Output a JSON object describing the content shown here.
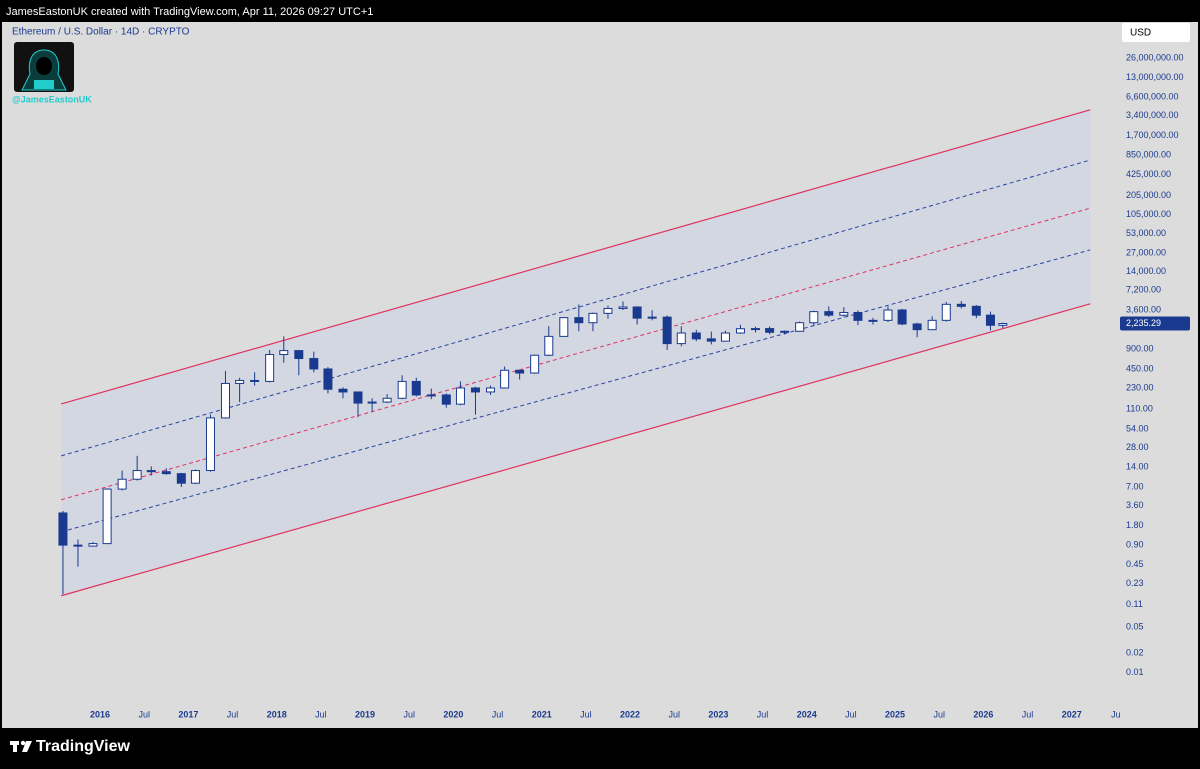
{
  "chart_data": {
    "type": "candlestick",
    "header": "JamesEastonUK created with TradingView.com, Apr 11, 2026 09:27 UTC+1",
    "title": "Ethereum / U.S. Dollar · 14D · CRYPTO",
    "handle": "@JamesEastonUK",
    "currency": "USD",
    "brand": "TradingView",
    "log_scale": true,
    "up_color": "#ffffff",
    "down_color": "#1a3a8f",
    "edge_color": "#1a3a8f",
    "x": [
      2015.58,
      2015.75,
      2015.92,
      2016.08,
      2016.25,
      2016.42,
      2016.58,
      2016.75,
      2016.92,
      2017.08,
      2017.25,
      2017.42,
      2017.58,
      2017.75,
      2017.92,
      2018.08,
      2018.25,
      2018.42,
      2018.58,
      2018.75,
      2018.92,
      2019.08,
      2019.25,
      2019.42,
      2019.58,
      2019.75,
      2019.92,
      2020.08,
      2020.25,
      2020.42,
      2020.58,
      2020.75,
      2020.92,
      2021.08,
      2021.25,
      2021.42,
      2021.58,
      2021.75,
      2021.92,
      2022.08,
      2022.25,
      2022.42,
      2022.58,
      2022.75,
      2022.92,
      2023.08,
      2023.25,
      2023.42,
      2023.58,
      2023.75,
      2023.92,
      2024.08,
      2024.25,
      2024.42,
      2024.58,
      2024.75,
      2024.92,
      2025.08,
      2025.25,
      2025.42,
      2025.58,
      2025.75,
      2025.92,
      2026.08,
      2026.22
    ],
    "open": [
      2.8,
      0.9,
      0.87,
      0.95,
      6.5,
      9.2,
      12.5,
      12.0,
      11.2,
      8.0,
      12.5,
      80,
      270,
      300,
      290,
      750,
      860,
      650,
      450,
      220,
      200,
      135,
      140,
      160,
      290,
      180,
      180,
      130,
      230,
      200,
      230,
      430,
      390,
      730,
      1420,
      2750,
      2300,
      3200,
      3800,
      4000,
      2700,
      2800,
      1100,
      1600,
      1300,
      1200,
      1600,
      1860,
      1870,
      1640,
      1700,
      2300,
      3400,
      3000,
      3300,
      2500,
      2500,
      3600,
      2200,
      1800,
      2500,
      4400,
      4100,
      3000,
      2100
    ],
    "high": [
      3.0,
      1.1,
      1.0,
      6.7,
      12.5,
      21,
      14.5,
      13.5,
      11.5,
      13,
      90,
      420,
      330,
      400,
      880,
      1420,
      870,
      830,
      480,
      235,
      200,
      160,
      185,
      360,
      330,
      225,
      190,
      290,
      240,
      250,
      490,
      440,
      750,
      2040,
      2800,
      4380,
      3300,
      4200,
      4870,
      4100,
      3580,
      2970,
      2030,
      1790,
      1680,
      1740,
      2140,
      2000,
      2020,
      1750,
      2400,
      3520,
      4090,
      3980,
      3560,
      2730,
      4100,
      3750,
      2300,
      2880,
      4800,
      4950,
      4300,
      3400,
      2300
    ],
    "low": [
      0.16,
      0.42,
      0.85,
      0.93,
      6.2,
      8.8,
      10.5,
      10.8,
      7.0,
      7.8,
      12,
      78,
      140,
      250,
      280,
      560,
      360,
      400,
      190,
      160,
      82,
      100,
      135,
      155,
      170,
      155,
      115,
      125,
      90,
      180,
      225,
      310,
      380,
      710,
      1400,
      1700,
      1700,
      2650,
      3600,
      2160,
      2500,
      880,
      1000,
      1200,
      1070,
      1190,
      1550,
      1630,
      1530,
      1520,
      1680,
      2100,
      2800,
      2850,
      2110,
      2150,
      2350,
      2100,
      1380,
      1780,
      2400,
      3800,
      2700,
      1750,
      1900
    ],
    "close": [
      0.9,
      0.87,
      0.95,
      6.5,
      9.2,
      12.5,
      12.0,
      11.2,
      8.0,
      12.5,
      80,
      270,
      300,
      290,
      750,
      860,
      650,
      450,
      220,
      200,
      135,
      140,
      160,
      290,
      180,
      180,
      130,
      230,
      200,
      230,
      430,
      390,
      730,
      1420,
      2750,
      2300,
      3200,
      3800,
      4000,
      2700,
      2800,
      1100,
      1600,
      1300,
      1200,
      1600,
      1860,
      1870,
      1640,
      1700,
      2300,
      3400,
      3000,
      3300,
      2500,
      2500,
      3600,
      2200,
      1800,
      2500,
      4400,
      4100,
      3000,
      2100,
      2235.29
    ],
    "last_price": {
      "value": 2235.29,
      "label": "2,235.29"
    },
    "channel_lines": [
      {
        "color": "#e0335f",
        "dashed": false,
        "x": [
          2015.56,
          2027.21
        ],
        "y": [
          131,
          4200000
        ]
      },
      {
        "color": "#2a44a0",
        "dashed": true,
        "x": [
          2015.56,
          2027.21
        ],
        "y": [
          21,
          714000
        ]
      },
      {
        "color": "#e0335f",
        "dashed": true,
        "x": [
          2015.56,
          2027.21
        ],
        "y": [
          4.46,
          131000
        ]
      },
      {
        "color": "#2a44a0",
        "dashed": true,
        "x": [
          2015.56,
          2027.21
        ],
        "y": [
          1.44,
          30000
        ]
      },
      {
        "color": "#e0335f",
        "dashed": false,
        "x": [
          2015.56,
          2027.21
        ],
        "y": [
          0.151,
          4480
        ]
      }
    ],
    "channel_fill": "#d3d7e2",
    "xlim": [
      2014.89,
      2027.49
    ],
    "xticks": [
      {
        "value": 2016,
        "label": "2016"
      },
      {
        "value": 2016.5,
        "label": "Jul"
      },
      {
        "value": 2017,
        "label": "2017"
      },
      {
        "value": 2017.5,
        "label": "Jul"
      },
      {
        "value": 2018,
        "label": "2018"
      },
      {
        "value": 2018.5,
        "label": "Jul"
      },
      {
        "value": 2019,
        "label": "2019"
      },
      {
        "value": 2019.5,
        "label": "Jul"
      },
      {
        "value": 2020,
        "label": "2020"
      },
      {
        "value": 2020.5,
        "label": "Jul"
      },
      {
        "value": 2021,
        "label": "2021"
      },
      {
        "value": 2021.5,
        "label": "Jul"
      },
      {
        "value": 2022,
        "label": "2022"
      },
      {
        "value": 2022.5,
        "label": "Jul"
      },
      {
        "value": 2023,
        "label": "2023"
      },
      {
        "value": 2023.5,
        "label": "Jul"
      },
      {
        "value": 2024,
        "label": "2024"
      },
      {
        "value": 2024.5,
        "label": "Jul"
      },
      {
        "value": 2025,
        "label": "2025"
      },
      {
        "value": 2025.5,
        "label": "Jul"
      },
      {
        "value": 2026,
        "label": "2026"
      },
      {
        "value": 2026.5,
        "label": "Jul"
      },
      {
        "value": 2027,
        "label": "2027"
      },
      {
        "value": 2027.5,
        "label": "Ju"
      }
    ],
    "ylim": [
      0.0032,
      93000000
    ],
    "yticks": [
      {
        "value": 26000000,
        "label": "26,000,000.00"
      },
      {
        "value": 13000000,
        "label": "13,000,000.00"
      },
      {
        "value": 6600000,
        "label": "6,600,000.00"
      },
      {
        "value": 3400000,
        "label": "3,400,000.00"
      },
      {
        "value": 1700000,
        "label": "1,700,000.00"
      },
      {
        "value": 850000,
        "label": "850,000.00"
      },
      {
        "value": 425000,
        "label": "425,000.00"
      },
      {
        "value": 205000,
        "label": "205,000.00"
      },
      {
        "value": 105000,
        "label": "105,000.00"
      },
      {
        "value": 53000,
        "label": "53,000.00"
      },
      {
        "value": 27000,
        "label": "27,000.00"
      },
      {
        "value": 14000,
        "label": "14,000.00"
      },
      {
        "value": 7200,
        "label": "7,200.00"
      },
      {
        "value": 3600,
        "label": "3,600.00"
      },
      {
        "value": 900,
        "label": "900.00"
      },
      {
        "value": 450,
        "label": "450.00"
      },
      {
        "value": 230,
        "label": "230.00"
      },
      {
        "value": 110,
        "label": "110.00"
      },
      {
        "value": 54,
        "label": "54.00"
      },
      {
        "value": 28,
        "label": "28.00"
      },
      {
        "value": 14,
        "label": "14.00"
      },
      {
        "value": 7,
        "label": "7.00"
      },
      {
        "value": 3.6,
        "label": "3.60"
      },
      {
        "value": 1.8,
        "label": "1.80"
      },
      {
        "value": 0.9,
        "label": "0.90"
      },
      {
        "value": 0.45,
        "label": "0.45"
      },
      {
        "value": 0.23,
        "label": "0.23"
      },
      {
        "value": 0.11,
        "label": "0.11"
      },
      0.05,
      0.02,
      0.01
    ]
  }
}
